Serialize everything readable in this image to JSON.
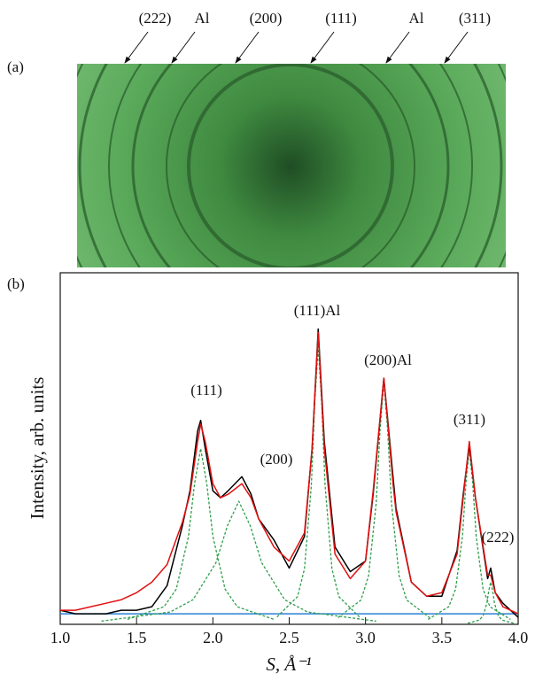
{
  "panel_a": {
    "label": "(a)",
    "ring_labels": [
      "(222)",
      "Al",
      "(200)",
      "(111)",
      "Al",
      "(311)"
    ]
  },
  "chart_data": {
    "type": "line",
    "panel_label": "(b)",
    "x_label": "S, Å⁻¹",
    "y_label": "Intensity, arb. units",
    "xlim": [
      1.0,
      4.0
    ],
    "ylim": [
      0,
      100
    ],
    "xticks": [
      {
        "value": 1.0,
        "label": "1.0"
      },
      {
        "value": 1.5,
        "label": "1.5"
      },
      {
        "value": 2.0,
        "label": "2.0"
      },
      {
        "value": 2.5,
        "label": "2.5"
      },
      {
        "value": 3.0,
        "label": "3.0"
      },
      {
        "value": 3.5,
        "label": "3.5"
      },
      {
        "value": 4.0,
        "label": "4.0"
      }
    ],
    "annotations": [
      "(111)",
      "(200)",
      "(111)Al",
      "(200)Al",
      "(311)",
      "(222)"
    ],
    "series": [
      {
        "color": "#2a7fd4",
        "style": "solid",
        "x": [
          1.0,
          4.0
        ],
        "values": [
          3,
          3
        ]
      },
      {
        "color": "#2e9e4a",
        "style": "dashed",
        "x": [
          1.44,
          1.68,
          1.76,
          1.84,
          1.88,
          1.92,
          1.96,
          2.0,
          2.08,
          2.16,
          2.4
        ],
        "values": [
          1.4,
          5,
          10,
          25,
          40,
          50,
          40,
          25,
          10,
          5,
          1.4
        ]
      },
      {
        "color": "#2e9e4a",
        "style": "dashed",
        "x": [
          1.27,
          1.72,
          1.87,
          2.02,
          2.095,
          2.17,
          2.245,
          2.32,
          2.47,
          2.62,
          3.07
        ],
        "values": [
          0.9,
          3.5,
          7,
          17.5,
          28,
          35,
          28,
          17.5,
          7,
          3.5,
          0.9
        ]
      },
      {
        "color": "#2e9e4a",
        "style": "dashed",
        "x": [
          2.42,
          2.555,
          2.6,
          2.645,
          2.6675,
          2.69,
          2.7125,
          2.735,
          2.78,
          2.825,
          2.96
        ],
        "values": [
          2.1,
          7.9,
          15.8,
          39.5,
          63.2,
          79,
          63.2,
          39.5,
          15.8,
          7.9,
          2.1
        ]
      },
      {
        "color": "#2e9e4a",
        "style": "dashed",
        "x": [
          2.82,
          2.97,
          3.02,
          3.07,
          3.095,
          3.12,
          3.145,
          3.17,
          3.22,
          3.27,
          3.42
        ],
        "values": [
          1.9,
          6.9,
          13.8,
          34.5,
          55.2,
          69,
          55.2,
          34.5,
          13.8,
          6.9,
          1.9
        ]
      },
      {
        "color": "#2e9e4a",
        "style": "dashed",
        "x": [
          3.41,
          3.545,
          3.59,
          3.635,
          3.6575,
          3.68,
          3.7025,
          3.725,
          3.77,
          3.815,
          3.95
        ],
        "values": [
          1.4,
          5,
          10,
          25,
          40,
          50,
          40,
          25,
          10,
          5,
          1.4
        ]
      },
      {
        "color": "#2e9e4a",
        "style": "dashed",
        "x": [
          3.67,
          3.745,
          3.77,
          3.795,
          3.8075,
          3.82,
          3.8325,
          3.845,
          3.87,
          3.895,
          3.97
        ],
        "values": [
          0.3,
          1.2,
          2.4,
          6,
          9.6,
          12,
          9.6,
          6,
          2.4,
          1.2,
          0.3
        ]
      },
      {
        "color": "#000000",
        "style": "solid",
        "x": [
          1.0,
          1.1,
          1.2,
          1.3,
          1.4,
          1.5,
          1.6,
          1.7,
          1.8,
          1.85,
          1.9,
          1.92,
          1.95,
          2.0,
          2.05,
          2.1,
          2.19,
          2.25,
          2.3,
          2.4,
          2.5,
          2.6,
          2.65,
          2.69,
          2.73,
          2.8,
          2.9,
          3.0,
          3.05,
          3.12,
          3.18,
          3.2,
          3.3,
          3.4,
          3.5,
          3.6,
          3.64,
          3.68,
          3.72,
          3.8,
          3.82,
          3.85,
          3.9,
          4.0
        ],
        "values": [
          4,
          3,
          3,
          3,
          4,
          4,
          5,
          11,
          28,
          38,
          55,
          58,
          50,
          38,
          36,
          38,
          42,
          37,
          30,
          24,
          16,
          25,
          50,
          84,
          52,
          22,
          15,
          18,
          37,
          70,
          42,
          33,
          12,
          8,
          8,
          21,
          37,
          51,
          36,
          13,
          16,
          9,
          6,
          2
        ]
      },
      {
        "color": "#e01010",
        "style": "solid",
        "x": [
          1.0,
          1.1,
          1.2,
          1.3,
          1.4,
          1.5,
          1.6,
          1.7,
          1.8,
          1.85,
          1.9,
          1.92,
          1.95,
          2.0,
          2.05,
          2.1,
          2.19,
          2.25,
          2.3,
          2.4,
          2.5,
          2.6,
          2.65,
          2.69,
          2.73,
          2.8,
          2.9,
          3.0,
          3.05,
          3.12,
          3.18,
          3.2,
          3.3,
          3.4,
          3.5,
          3.6,
          3.64,
          3.68,
          3.72,
          3.8,
          3.82,
          3.85,
          3.9,
          4.0
        ],
        "values": [
          4,
          4,
          5,
          6,
          7,
          9,
          12,
          17,
          29,
          37,
          52,
          57,
          52,
          40,
          36,
          37,
          40,
          36,
          30,
          22,
          18,
          26,
          50,
          83,
          50,
          20,
          13,
          18,
          38,
          70,
          40,
          32,
          12,
          8,
          9,
          20,
          36,
          52,
          36,
          14,
          14,
          9,
          5,
          3
        ]
      }
    ]
  }
}
